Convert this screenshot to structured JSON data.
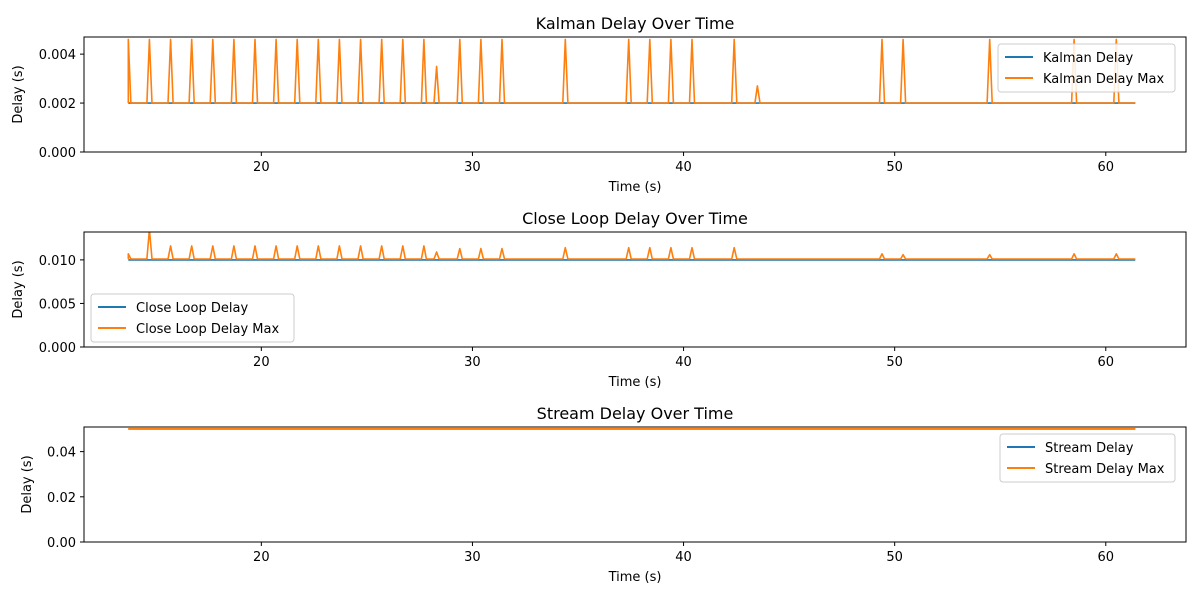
{
  "chart_data": [
    {
      "type": "line",
      "title": "Kalman Delay Over Time",
      "xlabel": "Time (s)",
      "ylabel": "Delay (s)",
      "xlim": [
        11.6,
        63.8
      ],
      "ylim": [
        0,
        0.0047
      ],
      "x_ticks": [
        20,
        30,
        40,
        50,
        60
      ],
      "x_tick_labels": [
        "20",
        "30",
        "40",
        "50",
        "60"
      ],
      "y_ticks": [
        0,
        0.002,
        0.004
      ],
      "y_tick_labels": [
        "0.000",
        "0.002",
        "0.004"
      ],
      "x_range": [
        13.7,
        61.4
      ],
      "legend": "upper-right",
      "series": [
        {
          "name": "Kalman Delay",
          "color": "#1f77b4",
          "base": 0.002,
          "spikes": []
        },
        {
          "name": "Kalman Delay Max",
          "color": "#ff7f0e",
          "base": 0.002,
          "spikes": [
            [
              13.7,
              0.0046
            ],
            [
              14.7,
              0.0046
            ],
            [
              15.7,
              0.0046
            ],
            [
              16.7,
              0.0046
            ],
            [
              17.7,
              0.0046
            ],
            [
              18.7,
              0.0046
            ],
            [
              19.7,
              0.0046
            ],
            [
              20.7,
              0.0046
            ],
            [
              21.7,
              0.0046
            ],
            [
              22.7,
              0.0046
            ],
            [
              23.7,
              0.0046
            ],
            [
              24.7,
              0.0046
            ],
            [
              25.7,
              0.0046
            ],
            [
              26.7,
              0.0046
            ],
            [
              27.7,
              0.0046
            ],
            [
              28.3,
              0.0035
            ],
            [
              29.4,
              0.0046
            ],
            [
              30.4,
              0.0046
            ],
            [
              31.4,
              0.0046
            ],
            [
              34.4,
              0.0046
            ],
            [
              37.4,
              0.0046
            ],
            [
              38.4,
              0.0046
            ],
            [
              39.4,
              0.0046
            ],
            [
              40.4,
              0.0046
            ],
            [
              42.4,
              0.0046
            ],
            [
              43.5,
              0.0027
            ],
            [
              49.4,
              0.0046
            ],
            [
              50.4,
              0.0046
            ],
            [
              54.5,
              0.0046
            ],
            [
              58.5,
              0.0046
            ],
            [
              60.5,
              0.0046
            ]
          ]
        }
      ]
    },
    {
      "type": "line",
      "title": "Close Loop Delay Over Time",
      "xlabel": "Time (s)",
      "ylabel": "Delay (s)",
      "xlim": [
        11.6,
        63.8
      ],
      "ylim": [
        0,
        0.0132
      ],
      "x_ticks": [
        20,
        30,
        40,
        50,
        60
      ],
      "x_tick_labels": [
        "20",
        "30",
        "40",
        "50",
        "60"
      ],
      "y_ticks": [
        0,
        0.005,
        0.01
      ],
      "y_tick_labels": [
        "0.000",
        "0.005",
        "0.010"
      ],
      "x_range": [
        13.7,
        61.4
      ],
      "legend": "lower-left",
      "series": [
        {
          "name": "Close Loop Delay",
          "color": "#1f77b4",
          "base": 0.01,
          "spikes": []
        },
        {
          "name": "Close Loop Delay Max",
          "color": "#ff7f0e",
          "base": 0.0101,
          "spikes": [
            [
              13.7,
              0.0107
            ],
            [
              14.7,
              0.0135
            ],
            [
              15.7,
              0.0116
            ],
            [
              16.7,
              0.0116
            ],
            [
              17.7,
              0.0116
            ],
            [
              18.7,
              0.0116
            ],
            [
              19.7,
              0.0116
            ],
            [
              20.7,
              0.0116
            ],
            [
              21.7,
              0.0116
            ],
            [
              22.7,
              0.0116
            ],
            [
              23.7,
              0.0116
            ],
            [
              24.7,
              0.0116
            ],
            [
              25.7,
              0.0116
            ],
            [
              26.7,
              0.0116
            ],
            [
              27.7,
              0.0116
            ],
            [
              28.3,
              0.0109
            ],
            [
              29.4,
              0.0113
            ],
            [
              30.4,
              0.0113
            ],
            [
              31.4,
              0.0113
            ],
            [
              34.4,
              0.0114
            ],
            [
              37.4,
              0.0114
            ],
            [
              38.4,
              0.0114
            ],
            [
              39.4,
              0.0114
            ],
            [
              40.4,
              0.0114
            ],
            [
              42.4,
              0.0114
            ],
            [
              49.4,
              0.0107
            ],
            [
              50.4,
              0.0106
            ],
            [
              54.5,
              0.0106
            ],
            [
              58.5,
              0.0107
            ],
            [
              60.5,
              0.0107
            ]
          ]
        }
      ]
    },
    {
      "type": "line",
      "title": "Stream Delay Over Time",
      "xlabel": "Time (s)",
      "ylabel": "Delay (s)",
      "xlim": [
        11.6,
        63.8
      ],
      "ylim": [
        0,
        0.0509
      ],
      "x_ticks": [
        20,
        30,
        40,
        50,
        60
      ],
      "x_tick_labels": [
        "20",
        "30",
        "40",
        "50",
        "60"
      ],
      "y_ticks": [
        0,
        0.02,
        0.04
      ],
      "y_tick_labels": [
        "0.00",
        "0.02",
        "0.04"
      ],
      "x_range": [
        13.7,
        61.4
      ],
      "legend": "upper-right",
      "series": [
        {
          "name": "Stream Delay",
          "color": "#1f77b4",
          "base": 0.05,
          "spikes": []
        },
        {
          "name": "Stream Delay Max",
          "color": "#ff7f0e",
          "base": 0.0501,
          "spikes": []
        }
      ]
    }
  ]
}
